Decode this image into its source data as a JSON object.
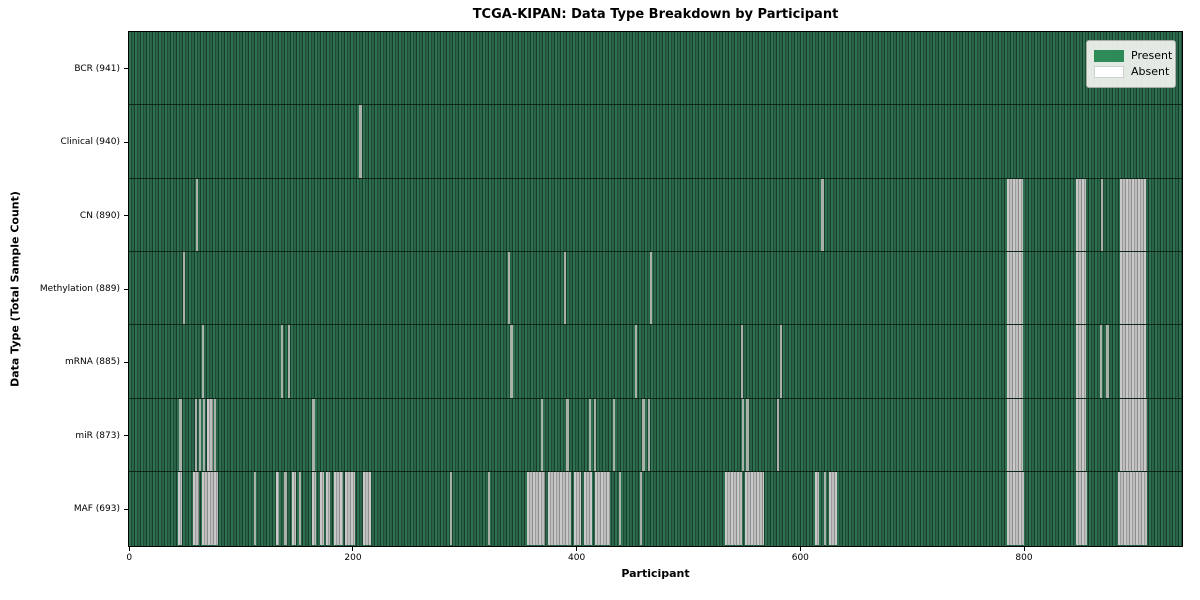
{
  "chart_data": {
    "type": "heatmap",
    "title": "TCGA-KIPAN: Data Type Breakdown by Participant",
    "xlabel": "Participant",
    "ylabel": "Data Type (Total Sample Count)",
    "xlim": [
      0,
      941
    ],
    "x_ticks": [
      0,
      200,
      400,
      600,
      800
    ],
    "grid": false,
    "legend_position": "upper right",
    "legend": [
      {
        "label": "Present",
        "color": "#2e8b57"
      },
      {
        "label": "Absent",
        "color": "#ffffff"
      }
    ],
    "value_encoding": {
      "present": 1,
      "absent": 0
    },
    "colors": {
      "present_fill": "#2e8b57",
      "present_field_light": "#2f7251",
      "present_field_dark": "#1e4a36",
      "absent_field_light": "#c9c9c9",
      "absent_field_dark": "#9b9b9b",
      "row_separator": "#0a1f14",
      "plot_border": "#000000"
    },
    "rows": [
      {
        "label": "BCR (941)",
        "name": "BCR",
        "present_count": 941,
        "absent_ranges": []
      },
      {
        "label": "Clinical (940)",
        "name": "Clinical",
        "present_count": 940,
        "absent_ranges": [
          [
            206,
            208
          ]
        ]
      },
      {
        "label": "CN (890)",
        "name": "CN",
        "present_count": 890,
        "absent_ranges": [
          [
            60,
            62
          ],
          [
            619,
            621
          ],
          [
            785,
            799
          ],
          [
            847,
            856
          ],
          [
            869,
            871
          ],
          [
            886,
            909
          ]
        ]
      },
      {
        "label": "Methylation (889)",
        "name": "Methylation",
        "present_count": 889,
        "absent_ranges": [
          [
            48,
            50
          ],
          [
            339,
            341
          ],
          [
            389,
            391
          ],
          [
            466,
            468
          ],
          [
            785,
            799
          ],
          [
            847,
            856
          ],
          [
            886,
            909
          ]
        ]
      },
      {
        "label": "mRNA (885)",
        "name": "mRNA",
        "present_count": 885,
        "absent_ranges": [
          [
            65,
            67
          ],
          [
            136,
            138
          ],
          [
            142,
            144
          ],
          [
            341,
            343
          ],
          [
            452,
            454
          ],
          [
            547,
            549
          ],
          [
            582,
            584
          ],
          [
            785,
            799
          ],
          [
            847,
            856
          ],
          [
            868,
            870
          ],
          [
            874,
            876
          ],
          [
            886,
            909
          ]
        ]
      },
      {
        "label": "miR (873)",
        "name": "miR",
        "present_count": 873,
        "absent_ranges": [
          [
            45,
            47
          ],
          [
            59,
            61
          ],
          [
            63,
            64
          ],
          [
            66,
            68
          ],
          [
            70,
            75
          ],
          [
            76,
            78
          ],
          [
            164,
            166
          ],
          [
            368,
            370
          ],
          [
            391,
            393
          ],
          [
            411,
            413
          ],
          [
            416,
            418
          ],
          [
            433,
            435
          ],
          [
            459,
            461
          ],
          [
            464,
            466
          ],
          [
            548,
            550
          ],
          [
            552,
            554
          ],
          [
            579,
            581
          ],
          [
            785,
            799
          ],
          [
            847,
            856
          ],
          [
            886,
            910
          ]
        ]
      },
      {
        "label": "MAF (693)",
        "name": "MAF",
        "present_count": 693,
        "absent_ranges": [
          [
            44,
            47
          ],
          [
            57,
            63
          ],
          [
            65,
            80
          ],
          [
            112,
            114
          ],
          [
            131,
            134
          ],
          [
            139,
            141
          ],
          [
            146,
            149
          ],
          [
            152,
            154
          ],
          [
            164,
            167
          ],
          [
            171,
            174
          ],
          [
            176,
            180
          ],
          [
            183,
            191
          ],
          [
            193,
            202
          ],
          [
            209,
            216
          ],
          [
            287,
            289
          ],
          [
            321,
            323
          ],
          [
            356,
            372
          ],
          [
            375,
            395
          ],
          [
            398,
            404
          ],
          [
            407,
            414
          ],
          [
            417,
            430
          ],
          [
            438,
            440
          ],
          [
            457,
            459
          ],
          [
            533,
            548
          ],
          [
            551,
            568
          ],
          [
            613,
            617
          ],
          [
            621,
            623
          ],
          [
            626,
            633
          ],
          [
            785,
            800
          ],
          [
            847,
            857
          ],
          [
            884,
            910
          ]
        ]
      }
    ]
  }
}
